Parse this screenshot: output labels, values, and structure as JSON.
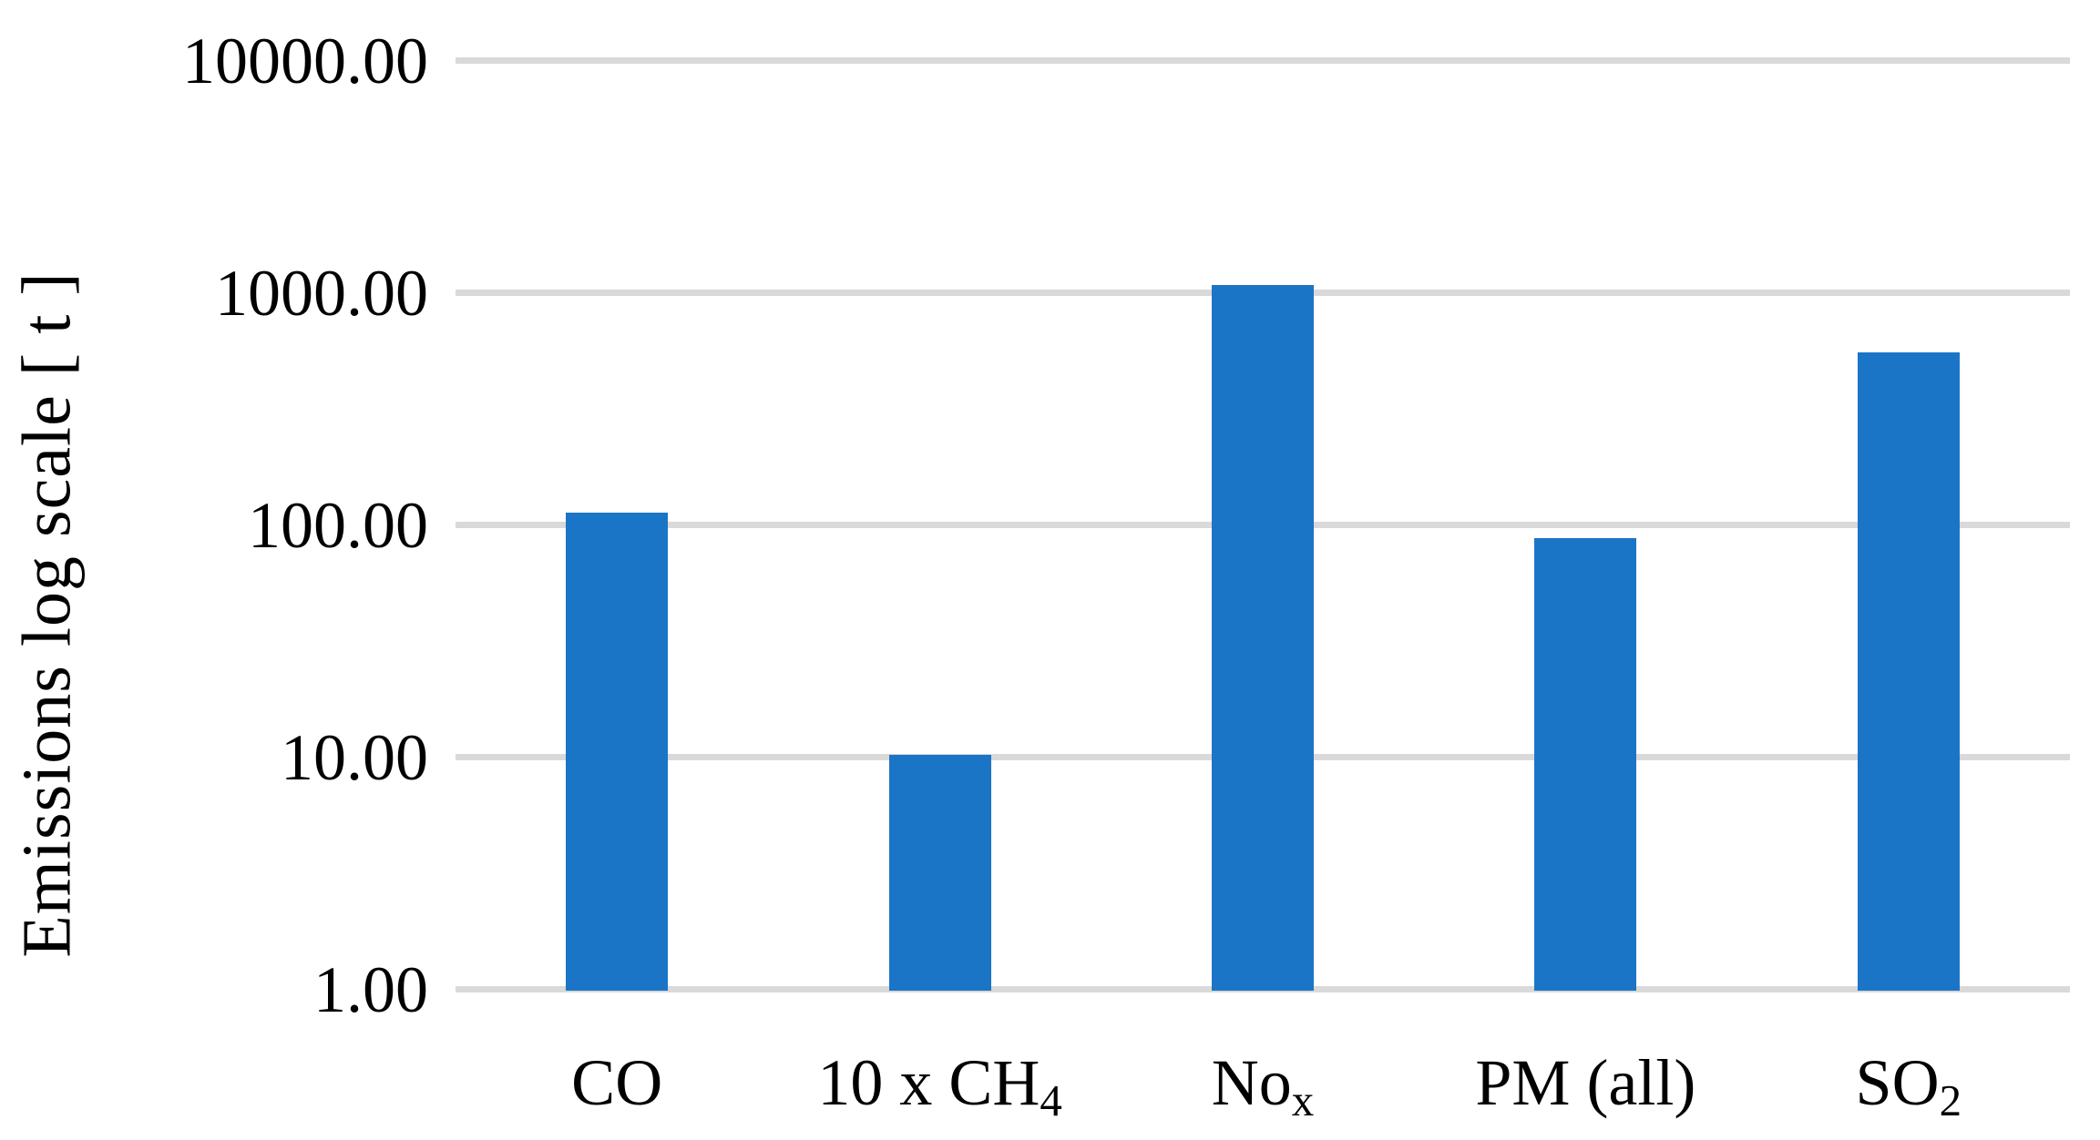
{
  "chart_data": {
    "type": "bar",
    "title": "",
    "xlabel": "",
    "ylabel": "Emissions log scale [ t ]",
    "yscale": "log",
    "ylim": [
      1,
      10000
    ],
    "grid": "horizontal",
    "legend": "none",
    "bar_color": "#1b75c6",
    "gridline_color": "#d9d9d9",
    "categories": [
      "CO",
      "10 x CH4",
      "Nox",
      "PM (all)",
      "SO2"
    ],
    "category_parts": [
      [
        {
          "text": "CO",
          "sub": false
        }
      ],
      [
        {
          "text": "10 x CH",
          "sub": false
        },
        {
          "text": "4",
          "sub": true
        }
      ],
      [
        {
          "text": "No",
          "sub": false
        },
        {
          "text": "x",
          "sub": true
        }
      ],
      [
        {
          "text": "PM (all)",
          "sub": false
        }
      ],
      [
        {
          "text": "SO",
          "sub": false
        },
        {
          "text": "2",
          "sub": true
        }
      ]
    ],
    "values": [
      110,
      10,
      1050,
      85,
      540
    ],
    "yticks": [
      {
        "value": 10000,
        "label": "10000.00"
      },
      {
        "value": 1000,
        "label": "1000.00"
      },
      {
        "value": 100,
        "label": "100.00"
      },
      {
        "value": 10,
        "label": "10.00"
      },
      {
        "value": 1,
        "label": "1.00"
      }
    ]
  }
}
